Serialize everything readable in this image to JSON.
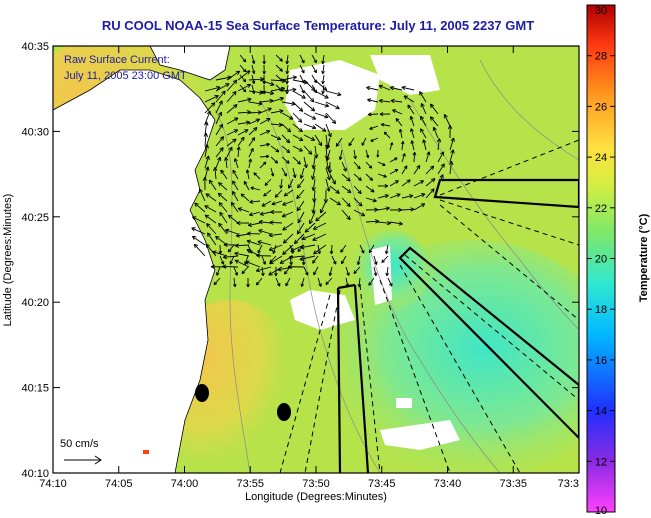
{
  "title": "RU COOL  NOAA-15  Sea Surface Temperature:  July 11, 2005 2237 GMT",
  "overlay": {
    "line1": "Raw Surface Current:",
    "line2": "July 11, 2005 23:00 GMT"
  },
  "axes": {
    "xlabel": "Longitude (Degrees:Minutes)",
    "ylabel": "Latitude (Degrees:Minutes)",
    "x_ticks": [
      "74:10",
      "74:05",
      "74:00",
      "73:55",
      "73:50",
      "73:45",
      "73:40",
      "73:35",
      "73:3"
    ],
    "y_ticks": [
      "40:35",
      "40:30",
      "40:25",
      "40:20",
      "40:15",
      "40:10"
    ]
  },
  "colorbar": {
    "title": "Temperature (°C)",
    "min": 10,
    "max": 30,
    "ticks": [
      "30",
      "28",
      "26",
      "24",
      "22",
      "20",
      "18",
      "16",
      "14",
      "12",
      "10"
    ]
  },
  "scale": {
    "label": "50 cm/s"
  },
  "colors": {
    "title": "#1c1ca8",
    "sst_warm": "#b6e34a",
    "sst_cool": "#3fe6c6",
    "sst_hot": "#f0c44a",
    "land": "#ffffff"
  }
}
